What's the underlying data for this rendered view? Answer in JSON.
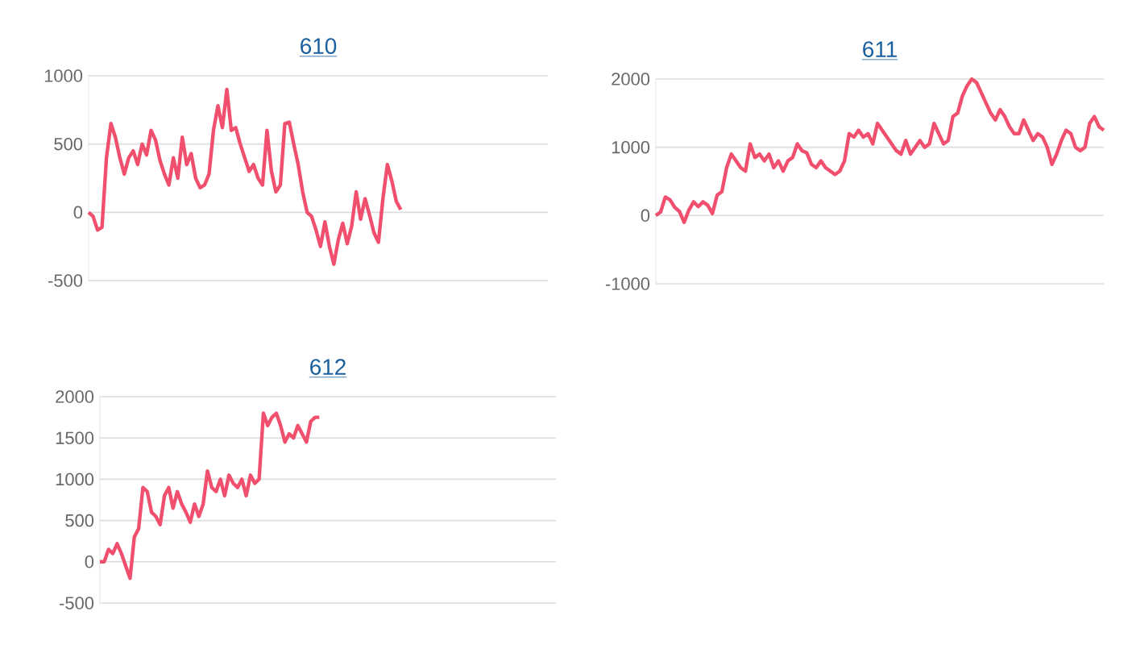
{
  "chart_data": [
    {
      "type": "line",
      "title": "610",
      "color": "#f0506e",
      "grid": "y",
      "tick_labels": "y",
      "ylim": [
        -500,
        1000
      ],
      "yticks": [
        -500,
        0,
        500,
        1000
      ],
      "categories": [
        null,
        null,
        null,
        null,
        null,
        null,
        null,
        null,
        null,
        null,
        null,
        null,
        null,
        null,
        null,
        null,
        null,
        null,
        null,
        null,
        null,
        null,
        null,
        null,
        null,
        null,
        null,
        null,
        null,
        null,
        null,
        null,
        null,
        null,
        null,
        null,
        null,
        null,
        null,
        null,
        null,
        null,
        null,
        null,
        null,
        null,
        null,
        null,
        null,
        null,
        null,
        null,
        null,
        null,
        null,
        null,
        null,
        null,
        null,
        null,
        null,
        null,
        null,
        null,
        null,
        null,
        null,
        null,
        null,
        null,
        null,
        null,
        null,
        null,
        null,
        null,
        null,
        null,
        null,
        null,
        null,
        null,
        null,
        null,
        null,
        null,
        null,
        null,
        null,
        null,
        null,
        null,
        null,
        null,
        null,
        null,
        null,
        null,
        null,
        null,
        null,
        null,
        null,
        null
      ],
      "values": [
        0,
        -30,
        -130,
        -110,
        400,
        650,
        550,
        400,
        280,
        400,
        450,
        350,
        500,
        420,
        600,
        530,
        380,
        280,
        200,
        400,
        250,
        550,
        350,
        430,
        250,
        180,
        200,
        280,
        600,
        780,
        620,
        900,
        600,
        620,
        500,
        400,
        300,
        350,
        250,
        200,
        600,
        300,
        150,
        200,
        650,
        660,
        500,
        350,
        150,
        0,
        -30,
        -130,
        -250,
        -70,
        -250,
        -380,
        -200,
        -80,
        -230,
        -100,
        150,
        -50,
        100,
        -20,
        -150,
        -220,
        100,
        350,
        230,
        80,
        20,
        null,
        null,
        null,
        null,
        null,
        null,
        null,
        null,
        null,
        null,
        null,
        null,
        null,
        null,
        null,
        null,
        null,
        null,
        null,
        null,
        null,
        null,
        null,
        null,
        null,
        null,
        null,
        null,
        null,
        null,
        null,
        null,
        null
      ]
    },
    {
      "type": "line",
      "title": "611",
      "color": "#f0506e",
      "grid": "y",
      "tick_labels": "y",
      "ylim": [
        -1000,
        2000
      ],
      "yticks": [
        -1000,
        0,
        1000,
        2000
      ],
      "categories": [
        null,
        null,
        null,
        null,
        null,
        null,
        null,
        null,
        null,
        null,
        null,
        null,
        null,
        null,
        null,
        null,
        null,
        null,
        null,
        null,
        null,
        null,
        null,
        null,
        null,
        null,
        null,
        null,
        null,
        null,
        null,
        null,
        null,
        null,
        null,
        null,
        null,
        null,
        null,
        null,
        null,
        null,
        null,
        null,
        null,
        null,
        null,
        null,
        null,
        null,
        null,
        null,
        null,
        null,
        null,
        null,
        null,
        null,
        null,
        null,
        null,
        null,
        null,
        null,
        null,
        null,
        null,
        null,
        null,
        null,
        null,
        null,
        null,
        null,
        null,
        null,
        null,
        null,
        null,
        null,
        null,
        null,
        null,
        null,
        null,
        null,
        null,
        null,
        null,
        null,
        null,
        null,
        null,
        null,
        null,
        null
      ],
      "values": [
        0,
        50,
        270,
        230,
        120,
        60,
        -100,
        80,
        200,
        130,
        200,
        150,
        30,
        300,
        350,
        700,
        900,
        800,
        700,
        650,
        1050,
        850,
        900,
        800,
        900,
        700,
        800,
        650,
        800,
        850,
        1050,
        950,
        920,
        750,
        700,
        800,
        700,
        650,
        600,
        650,
        800,
        1200,
        1150,
        1250,
        1150,
        1200,
        1050,
        1350,
        1250,
        1150,
        1050,
        950,
        900,
        1100,
        900,
        1000,
        1100,
        1000,
        1050,
        1350,
        1200,
        1050,
        1100,
        1450,
        1500,
        1750,
        1900,
        2000,
        1950,
        1800,
        1650,
        1500,
        1400,
        1550,
        1450,
        1300,
        1200,
        1200,
        1400,
        1250,
        1100,
        1200,
        1150,
        1000,
        750,
        900,
        1100,
        1250,
        1200,
        1000,
        950,
        1000,
        1350,
        1450,
        1300,
        1250
      ]
    },
    {
      "type": "line",
      "title": "612",
      "color": "#f0506e",
      "grid": "y",
      "tick_labels": "y",
      "ylim": [
        -500,
        2000
      ],
      "yticks": [
        -500,
        0,
        500,
        1000,
        1500,
        2000
      ],
      "categories": [
        null,
        null,
        null,
        null,
        null,
        null,
        null,
        null,
        null,
        null,
        null,
        null,
        null,
        null,
        null,
        null,
        null,
        null,
        null,
        null,
        null,
        null,
        null,
        null,
        null,
        null,
        null,
        null,
        null,
        null,
        null,
        null,
        null,
        null,
        null,
        null,
        null,
        null,
        null,
        null,
        null,
        null,
        null,
        null,
        null,
        null,
        null,
        null,
        null,
        null,
        null,
        null,
        null,
        null,
        null,
        null,
        null,
        null,
        null,
        null,
        null,
        null,
        null,
        null,
        null,
        null,
        null,
        null,
        null,
        null,
        null,
        null,
        null,
        null,
        null,
        null,
        null,
        null,
        null,
        null,
        null,
        null,
        null,
        null,
        null,
        null,
        null,
        null,
        null,
        null,
        null,
        null,
        null,
        null,
        null,
        null,
        null,
        null,
        null,
        null,
        null,
        null,
        null,
        null,
        null,
        null,
        null
      ],
      "values": [
        0,
        0,
        150,
        100,
        220,
        100,
        -50,
        -200,
        300,
        400,
        900,
        850,
        600,
        550,
        450,
        800,
        900,
        650,
        850,
        700,
        600,
        480,
        700,
        550,
        700,
        1100,
        900,
        850,
        1000,
        800,
        1050,
        950,
        900,
        1000,
        800,
        1050,
        950,
        1000,
        1800,
        1650,
        1750,
        1800,
        1650,
        1450,
        1550,
        1500,
        1650,
        1550,
        1450,
        1700,
        1750,
        1750,
        null,
        null,
        null,
        null,
        null,
        null,
        null,
        null,
        null,
        null,
        null,
        null,
        null,
        null,
        null,
        null,
        null,
        null,
        null,
        null,
        null,
        null,
        null,
        null,
        null,
        null,
        null,
        null,
        null,
        null,
        null,
        null,
        null,
        null,
        null,
        null,
        null,
        null,
        null,
        null,
        null,
        null,
        null,
        null,
        null,
        null,
        null,
        null,
        null,
        null,
        null,
        null,
        null,
        null,
        null
      ]
    }
  ]
}
